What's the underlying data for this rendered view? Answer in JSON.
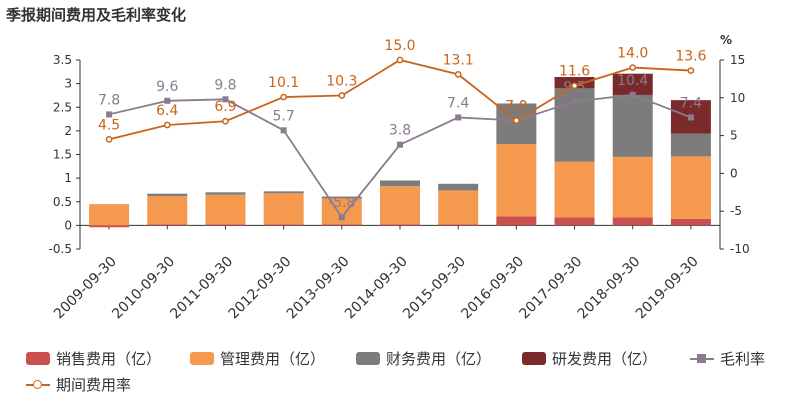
{
  "header": {
    "title": "季报期间费用及毛利率变化"
  },
  "chart_data": {
    "type": "bar",
    "stacked": true,
    "categories": [
      "2009-09-30",
      "2010-09-30",
      "2011-09-30",
      "2012-09-30",
      "2013-09-30",
      "2014-09-30",
      "2015-09-30",
      "2016-09-30",
      "2017-09-30",
      "2018-09-30",
      "2019-09-30"
    ],
    "left_axis": {
      "min": -0.5,
      "max": 3.5,
      "ticks": [
        "-0.5",
        "0",
        "0.5",
        "1",
        "1.5",
        "2",
        "2.5",
        "3",
        "3.5"
      ]
    },
    "right_axis": {
      "unit": "%",
      "min": -10,
      "max": 15,
      "ticks": [
        "-10",
        "-5",
        "0",
        "5",
        "10",
        "15"
      ]
    },
    "series": [
      {
        "name": "销售费用（亿）",
        "type": "bar",
        "color": "#c9504f",
        "values": [
          -0.04,
          0.02,
          0.02,
          0.02,
          0.02,
          0.02,
          0.02,
          0.19,
          0.17,
          0.17,
          0.14
        ]
      },
      {
        "name": "管理费用（亿）",
        "type": "bar",
        "color": "#f5994e",
        "values": [
          0.45,
          0.6,
          0.63,
          0.66,
          0.55,
          0.81,
          0.72,
          1.53,
          1.18,
          1.28,
          1.32
        ]
      },
      {
        "name": "财务费用（亿）",
        "type": "bar",
        "color": "#7c7c7c",
        "values": [
          0.0,
          0.05,
          0.05,
          0.04,
          0.04,
          0.12,
          0.14,
          0.86,
          1.55,
          1.31,
          0.48
        ]
      },
      {
        "name": "研发费用（亿）",
        "type": "bar",
        "color": "#7a2a2a",
        "values": [
          0,
          0,
          0,
          0,
          0,
          0,
          0,
          0,
          0.24,
          0.45,
          0.71
        ]
      },
      {
        "name": "毛利率",
        "type": "line",
        "axis": "right",
        "color": "#8c7b8f",
        "values": [
          7.8,
          9.6,
          9.8,
          5.7,
          -5.8,
          3.8,
          7.4,
          7.0,
          9.5,
          10.4,
          7.4
        ],
        "labels": [
          "7.8",
          "9.6",
          "9.8",
          "5.7",
          "-5.8",
          "3.8",
          "7.4",
          "7.0",
          "9.5",
          "10.4",
          "7.4"
        ]
      },
      {
        "name": "期间费用率",
        "type": "line",
        "axis": "right",
        "color": "#c8651b",
        "values": [
          4.5,
          6.4,
          6.9,
          10.1,
          10.3,
          15.0,
          13.1,
          7.0,
          11.6,
          14.0,
          13.6
        ],
        "labels": [
          "4.5",
          "6.4",
          "6.9",
          "10.1",
          "10.3",
          "15.0",
          "13.1",
          "7.0",
          "11.6",
          "14.0",
          "13.6"
        ]
      }
    ]
  }
}
